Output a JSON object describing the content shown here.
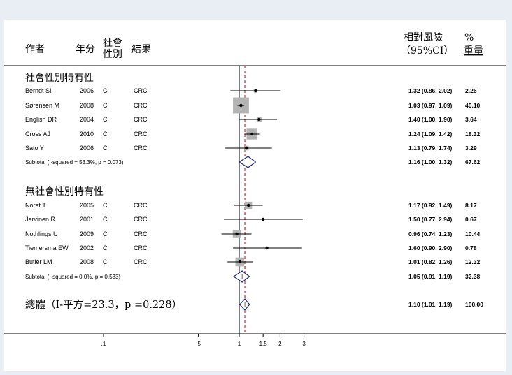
{
  "header": {
    "author": "作者",
    "year": "年分",
    "gender_line1": "社會",
    "gender_line2": "性別",
    "outcome": "結果",
    "rr_line1": "相對風險",
    "rr_line2": "（95%CI）",
    "weight_line1": "%",
    "weight_line2": "重量"
  },
  "groups": [
    {
      "title": "社會性別特有性",
      "studies": [
        {
          "author": "Berndt SI",
          "year": "2006",
          "gender": "C",
          "outcome": "CRC",
          "rr": 1.32,
          "lo": 0.86,
          "hi": 2.02,
          "label": "1.32 (0.86, 2.02)",
          "weight": "2.26"
        },
        {
          "author": "Sørensen M",
          "year": "2008",
          "gender": "C",
          "outcome": "CRC",
          "rr": 1.03,
          "lo": 0.97,
          "hi": 1.09,
          "label": "1.03 (0.97, 1.09)",
          "weight": "40.10"
        },
        {
          "author": "English DR",
          "year": "2004",
          "gender": "C",
          "outcome": "CRC",
          "rr": 1.4,
          "lo": 1.0,
          "hi": 1.9,
          "label": "1.40 (1.00, 1.90)",
          "weight": "3.64"
        },
        {
          "author": "Cross AJ",
          "year": "2010",
          "gender": "C",
          "outcome": "CRC",
          "rr": 1.24,
          "lo": 1.09,
          "hi": 1.42,
          "label": "1.24 (1.09, 1.42)",
          "weight": "18.32"
        },
        {
          "author": "Sato Y",
          "year": "2006",
          "gender": "C",
          "outcome": "CRC",
          "rr": 1.13,
          "lo": 0.79,
          "hi": 1.74,
          "label": "1.13 (0.79, 1.74)",
          "weight": "3.29"
        }
      ],
      "subtotal": {
        "text": "Subtotal  (I-squared = 53.3%, p = 0.073)",
        "rr": 1.16,
        "lo": 1.0,
        "hi": 1.32,
        "label": "1.16 (1.00, 1.32)",
        "weight": "67.62"
      }
    },
    {
      "title": "無社會性別特有性",
      "studies": [
        {
          "author": "Norat T",
          "year": "2005",
          "gender": "C",
          "outcome": "CRC",
          "rr": 1.17,
          "lo": 0.92,
          "hi": 1.49,
          "label": "1.17 (0.92, 1.49)",
          "weight": "8.17"
        },
        {
          "author": "Jarvinen R",
          "year": "2001",
          "gender": "C",
          "outcome": "CRC",
          "rr": 1.5,
          "lo": 0.77,
          "hi": 2.94,
          "label": "1.50 (0.77, 2.94)",
          "weight": "0.67"
        },
        {
          "author": "Nothlings U",
          "year": "2009",
          "gender": "C",
          "outcome": "CRC",
          "rr": 0.96,
          "lo": 0.74,
          "hi": 1.23,
          "label": "0.96 (0.74, 1.23)",
          "weight": "10.44"
        },
        {
          "author": "Tiemersma EW",
          "year": "2002",
          "gender": "C",
          "outcome": "CRC",
          "rr": 1.6,
          "lo": 0.9,
          "hi": 2.9,
          "label": "1.60 (0.90, 2.90)",
          "weight": "0.78"
        },
        {
          "author": "Butler LM",
          "year": "2008",
          "gender": "C",
          "outcome": "CRC",
          "rr": 1.01,
          "lo": 0.82,
          "hi": 1.26,
          "label": "1.01 (0.82, 1.26)",
          "weight": "12.32"
        }
      ],
      "subtotal": {
        "text": "Subtotal  (I-squared = 0.0%, p = 0.533)",
        "rr": 1.05,
        "lo": 0.91,
        "hi": 1.19,
        "label": "1.05 (0.91, 1.19)",
        "weight": "32.38"
      }
    }
  ],
  "overall": {
    "text": "總體（I-平方=23.3，p =0.228）",
    "rr": 1.1,
    "lo": 1.01,
    "hi": 1.19,
    "label": "1.10 (1.01, 1.19)",
    "weight": "100.00"
  },
  "chart_data": {
    "type": "forest",
    "x_scale": "log",
    "null_line": 1,
    "pooled_line": 1.1,
    "x_ticks": [
      0.1,
      0.5,
      1,
      1.5,
      2,
      3
    ],
    "x_tick_labels": [
      ".1",
      ".5",
      "1",
      "1.5",
      "2",
      "3"
    ],
    "colors": {
      "box": "#b4b4b4",
      "diamond": "#1f2a6b",
      "pooled_line": "#c0001a",
      "line": "#000000"
    }
  }
}
